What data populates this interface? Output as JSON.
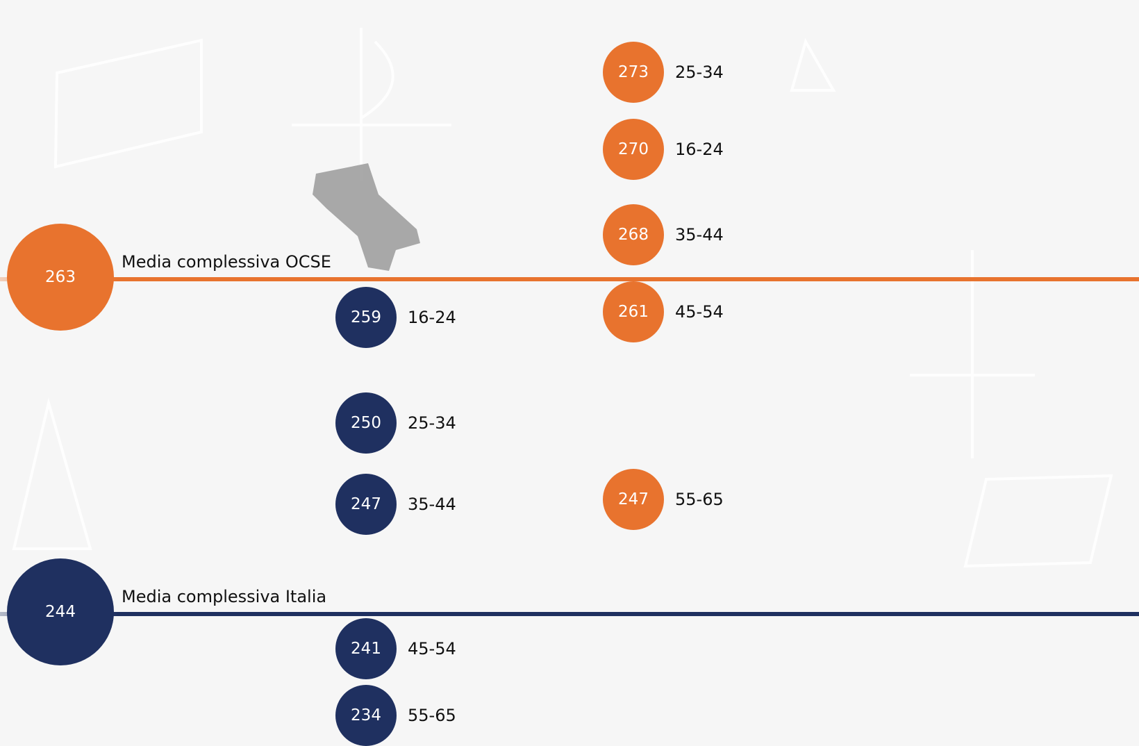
{
  "ocse": {
    "value": 263,
    "label": "Media complessiva OCSE",
    "groups": [
      {
        "value": 273,
        "age": "25-34"
      },
      {
        "value": 270,
        "age": "16-24"
      },
      {
        "value": 268,
        "age": "35-44"
      },
      {
        "value": 261,
        "age": "45-54"
      },
      {
        "value": 247,
        "age": "55-65"
      }
    ]
  },
  "italia": {
    "value": 244,
    "label": "Media complessiva Italia",
    "groups": [
      {
        "value": 259,
        "age": "16-24"
      },
      {
        "value": 250,
        "age": "25-34"
      },
      {
        "value": 247,
        "age": "35-44"
      },
      {
        "value": 241,
        "age": "45-54"
      },
      {
        "value": 234,
        "age": "55-65"
      }
    ]
  }
}
